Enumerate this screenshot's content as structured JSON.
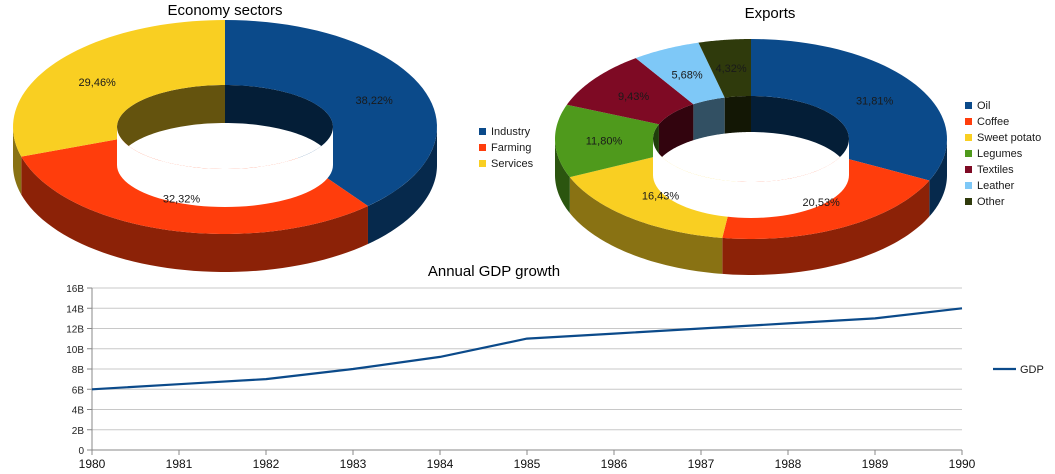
{
  "chart_data": [
    {
      "type": "pie",
      "title": "Economy sectors",
      "categories": [
        "Industry",
        "Farming",
        "Services"
      ],
      "values": [
        38.22,
        32.32,
        29.46
      ],
      "value_labels": [
        "38,22%",
        "32,32%",
        "29,46%"
      ],
      "colors": [
        "#0b4a8a",
        "#ff3d0c",
        "#f9cf22"
      ],
      "legend": "right"
    },
    {
      "type": "pie",
      "title": "Exports",
      "categories": [
        "Oil",
        "Coffee",
        "Sweet potato",
        "Legumes",
        "Textiles",
        "Leather",
        "Other"
      ],
      "values": [
        31.81,
        20.53,
        16.43,
        11.8,
        9.43,
        5.68,
        4.32
      ],
      "value_labels": [
        "31,81%",
        "20,53%",
        "16,43%",
        "11,80%",
        "9,43%",
        "5,68%",
        "4,32%"
      ],
      "colors": [
        "#0b4a8a",
        "#ff3d0c",
        "#f9cf22",
        "#4f9a1c",
        "#7e0a24",
        "#7ec8f7",
        "#2f3a0c"
      ],
      "legend": "right"
    },
    {
      "type": "line",
      "title": "Annual GDP growth",
      "x": [
        1980,
        1981,
        1982,
        1983,
        1984,
        1985,
        1986,
        1987,
        1988,
        1989,
        1990
      ],
      "series": [
        {
          "name": "GDP",
          "values": [
            6,
            6.5,
            7,
            8,
            9.2,
            11,
            11.5,
            12,
            12.5,
            13,
            14
          ],
          "color": "#0b4a8a"
        }
      ],
      "y_ticks": [
        "0",
        "2B",
        "4B",
        "6B",
        "8B",
        "10B",
        "12B",
        "14B",
        "16B"
      ],
      "x_ticks": [
        "1980",
        "1981",
        "1982",
        "1983",
        "1984",
        "1985",
        "1986",
        "1987",
        "1988",
        "1989",
        "1990"
      ],
      "ylim": [
        0,
        16
      ],
      "xlim": [
        1980,
        1990
      ],
      "grid": true,
      "legend": "right"
    }
  ]
}
